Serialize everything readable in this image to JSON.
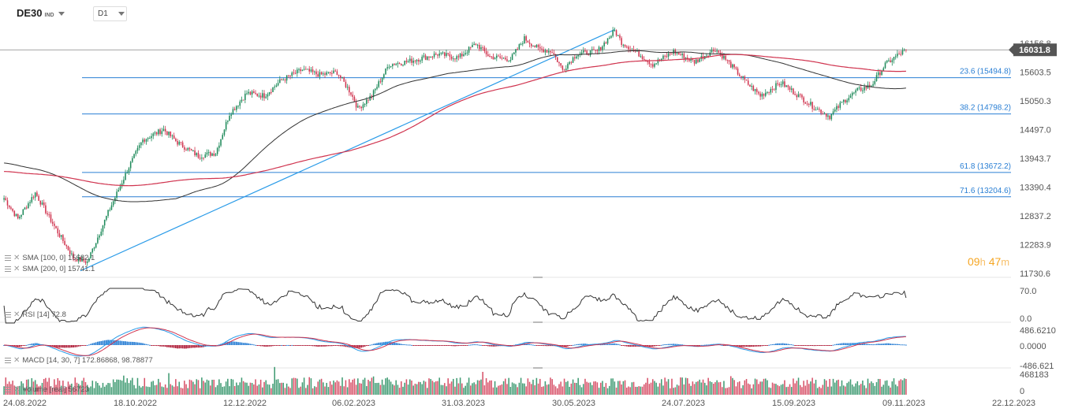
{
  "instrument": {
    "symbol": "DE30",
    "type": "IND",
    "timeframe": "D1"
  },
  "price_axis": {
    "ticks": [
      "16156.8",
      "15603.5",
      "15050.3",
      "14497.0",
      "13943.7",
      "13390.4",
      "12837.2",
      "12283.9",
      "11730.6"
    ],
    "last_price": "16031.8",
    "range": [
      11730.6,
      16156.8
    ]
  },
  "fibonacci": [
    {
      "label": "23.6 (15494.8)",
      "level": 15494.8
    },
    {
      "label": "38.2 (14798.2)",
      "level": 14798.2
    },
    {
      "label": "61.8 (13672.2)",
      "level": 13672.2
    },
    {
      "label": "71.6 (13204.6)",
      "level": 13204.6
    }
  ],
  "indicators": {
    "sma100": {
      "name": "SMA",
      "params": "[100, 0]",
      "value": "15682.1"
    },
    "sma200": {
      "name": "SMA",
      "params": "[200, 0]",
      "value": "15741.1"
    },
    "rsi": {
      "name": "RSI",
      "params": "[14]",
      "value": "72.8",
      "ticks": [
        "70.0",
        "0.0"
      ]
    },
    "macd": {
      "name": "MACD",
      "params": "[14, 30, 7]",
      "value1": "172.86868",
      "value2": "98.78877",
      "ticks": [
        "486.6210",
        "0.0000",
        "-486.621"
      ]
    },
    "volume": {
      "name": "Volume",
      "params": "[real]",
      "value": "56723",
      "ticks": [
        "468183",
        "0"
      ]
    }
  },
  "date_axis": [
    "24.08.2022",
    "18.10.2022",
    "12.12.2022",
    "06.02.2023",
    "31.03.2023",
    "30.05.2023",
    "24.07.2023",
    "15.09.2023",
    "09.11.2023",
    "22.12.2023"
  ],
  "countdown": {
    "hours": "09",
    "h_unit": "h",
    "minutes": "47",
    "m_unit": "m"
  },
  "colors": {
    "up": "#1e8a5a",
    "down": "#d0344f",
    "sma100": "#333333",
    "sma200": "#d0344f",
    "fib": "#2a7fd4",
    "trend": "#2a9be8"
  },
  "chart_data": {
    "type": "candlestick",
    "close_anchors": [
      [
        0,
        13180
      ],
      [
        8,
        12780
      ],
      [
        18,
        13280
      ],
      [
        30,
        12580
      ],
      [
        40,
        12030
      ],
      [
        48,
        11950
      ],
      [
        60,
        12900
      ],
      [
        72,
        13780
      ],
      [
        80,
        14300
      ],
      [
        92,
        14500
      ],
      [
        100,
        14250
      ],
      [
        112,
        13990
      ],
      [
        122,
        14050
      ],
      [
        130,
        14800
      ],
      [
        140,
        15200
      ],
      [
        150,
        15150
      ],
      [
        160,
        15450
      ],
      [
        172,
        15650
      ],
      [
        182,
        15550
      ],
      [
        192,
        15600
      ],
      [
        200,
        15200
      ],
      [
        204,
        14900
      ],
      [
        212,
        15150
      ],
      [
        222,
        15750
      ],
      [
        232,
        15800
      ],
      [
        250,
        15950
      ],
      [
        262,
        15880
      ],
      [
        272,
        16150
      ],
      [
        280,
        15900
      ],
      [
        292,
        15850
      ],
      [
        300,
        16250
      ],
      [
        308,
        16050
      ],
      [
        316,
        16000
      ],
      [
        322,
        15650
      ],
      [
        330,
        15950
      ],
      [
        342,
        16000
      ],
      [
        352,
        16400
      ],
      [
        356,
        16180
      ],
      [
        366,
        15950
      ],
      [
        374,
        15750
      ],
      [
        386,
        16000
      ],
      [
        398,
        15800
      ],
      [
        410,
        16050
      ],
      [
        416,
        15850
      ],
      [
        428,
        15400
      ],
      [
        436,
        15150
      ],
      [
        448,
        15400
      ],
      [
        456,
        15200
      ],
      [
        466,
        14950
      ],
      [
        476,
        14750
      ],
      [
        484,
        15050
      ],
      [
        492,
        15250
      ],
      [
        500,
        15350
      ],
      [
        508,
        15750
      ],
      [
        514,
        15900
      ],
      [
        520,
        16031.8
      ]
    ]
  }
}
